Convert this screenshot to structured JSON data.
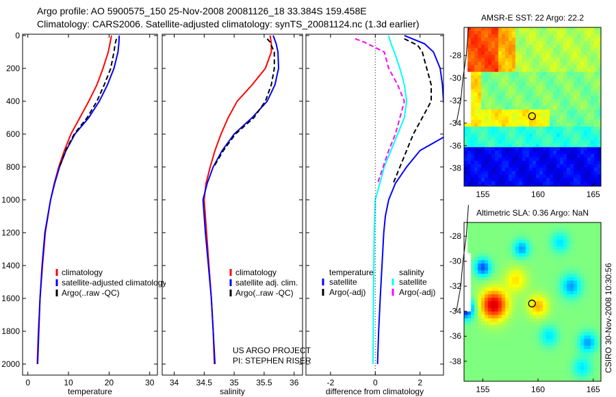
{
  "title": {
    "line1": "Argo profile: AO 5900575_150 25-Nov-2008 20081126_18 33.384S 159.458E",
    "line2": "Climatology: CARS2006. Satellite-adjusted climatology: synTS_20081124.nc (1.3d earlier)"
  },
  "side_text": "CSIRO 30-Nov-2008 10:30:56",
  "project": {
    "line1": "US ARGO PROJECT",
    "line2": "PI: STEPHEN RISER"
  },
  "colors": {
    "climatology": "#ff0000",
    "satellite": "#0000ff",
    "argo": "#000000",
    "sal_sat": "#00ffff",
    "sal_argo": "#ff00ff"
  },
  "chart_data": [
    {
      "type": "line",
      "id": "temperature",
      "xlabel": "temperature",
      "ylabel": "",
      "xlim": [
        -1.3,
        31.9
      ],
      "ylim": [
        2067,
        -8
      ],
      "xticks": [
        "0",
        "10",
        "20",
        "30"
      ],
      "xtick_values": [
        0,
        10,
        20,
        30
      ],
      "yticks": [
        "0",
        "200",
        "400",
        "600",
        "800",
        "1000",
        "1200",
        "1400",
        "1600",
        "1800",
        "2000"
      ],
      "ytick_values": [
        0,
        200,
        400,
        600,
        800,
        1000,
        1200,
        1400,
        1600,
        1800,
        2000
      ],
      "legend": [
        "climatology",
        "satellite-adjusted climatology",
        "Argo(..raw -QC)"
      ],
      "series": [
        {
          "name": "climatology",
          "color": "#ff0000",
          "dash": false,
          "depth": [
            0,
            50,
            100,
            200,
            300,
            400,
            500,
            600,
            700,
            800,
            900,
            1000,
            1200,
            1400,
            1600,
            1800,
            2000
          ],
          "values": [
            20.6,
            20.2,
            19.8,
            18.5,
            17,
            15,
            12.8,
            10.6,
            9,
            7.6,
            6.5,
            5.6,
            4.3,
            3.6,
            3.0,
            2.6,
            2.3
          ]
        },
        {
          "name": "satellite-adjusted climatology",
          "color": "#0000ff",
          "dash": false,
          "depth": [
            0,
            50,
            100,
            200,
            300,
            400,
            500,
            600,
            700,
            800,
            900,
            1000,
            1200,
            1400,
            1600,
            1800,
            2000
          ],
          "values": [
            22.5,
            22.4,
            22.2,
            21.2,
            19.6,
            17.6,
            15,
            11.6,
            9.4,
            7.8,
            6.6,
            5.6,
            4.2,
            3.5,
            3.0,
            2.7,
            2.4
          ]
        },
        {
          "name": "Argo(..raw -QC)",
          "color": "#000000",
          "dash": true,
          "depth": [
            20,
            50,
            100,
            200,
            300,
            400,
            500,
            600,
            700,
            800
          ],
          "values": [
            21.8,
            21.5,
            21.2,
            20.4,
            18.8,
            17,
            14.6,
            11.4,
            9.3,
            7.8
          ]
        }
      ]
    },
    {
      "type": "line",
      "id": "salinity",
      "xlabel": "salinity",
      "xlim": [
        33.8,
        36.14
      ],
      "ylim": [
        2067,
        -8
      ],
      "xticks": [
        "34",
        "34.5",
        "35",
        "35.5",
        "36"
      ],
      "xtick_values": [
        34,
        34.5,
        35,
        35.5,
        36
      ],
      "legend": [
        "climatology",
        "satellite adj. clim.",
        "Argo(..raw -QC)"
      ],
      "series": [
        {
          "name": "climatology",
          "color": "#ff0000",
          "dash": false,
          "depth": [
            0,
            50,
            100,
            200,
            300,
            400,
            500,
            600,
            700,
            800,
            900,
            1000,
            1200,
            1400,
            1600,
            1800,
            2000
          ],
          "values": [
            35.6,
            35.62,
            35.62,
            35.52,
            35.3,
            35.05,
            34.9,
            34.78,
            34.68,
            34.6,
            34.53,
            34.5,
            34.54,
            34.58,
            34.62,
            34.65,
            34.67
          ]
        },
        {
          "name": "satellite adj. clim.",
          "color": "#0000ff",
          "dash": false,
          "depth": [
            0,
            50,
            100,
            200,
            300,
            400,
            500,
            600,
            700,
            800,
            900,
            1000,
            1200,
            1400,
            1600,
            1800,
            2000
          ],
          "values": [
            35.65,
            35.7,
            35.73,
            35.74,
            35.68,
            35.55,
            35.3,
            35.0,
            34.8,
            34.65,
            34.55,
            34.48,
            34.52,
            34.57,
            34.62,
            34.65,
            34.68
          ]
        },
        {
          "name": "Argo(..raw -QC)",
          "color": "#000000",
          "dash": true,
          "depth": [
            20,
            40,
            60,
            100,
            200,
            300,
            400,
            500,
            600,
            700,
            800
          ],
          "values": [
            35.55,
            35.6,
            35.62,
            35.67,
            35.67,
            35.62,
            35.52,
            35.33,
            35.02,
            34.82,
            34.66
          ]
        }
      ]
    },
    {
      "type": "line",
      "id": "difference",
      "xlabel": "difference from climatology",
      "xlim": [
        -3.1,
        3.05
      ],
      "ylim": [
        2067,
        -8
      ],
      "xticks": [
        "-2",
        "0",
        "2"
      ],
      "xtick_values": [
        -2,
        0,
        2
      ],
      "legend_temperature": {
        "title": "temperature",
        "items": [
          "satellite",
          "Argo(-adj)"
        ]
      },
      "legend_salinity": {
        "title": "salinity",
        "items": [
          "satellite",
          "Argo(-adj)"
        ]
      },
      "series": [
        {
          "name": "temperature satellite",
          "color": "#0000ff",
          "dash": false,
          "depth": [
            0,
            50,
            100,
            200,
            300,
            400,
            450,
            500,
            600,
            700,
            800,
            900,
            1000,
            1100,
            1200,
            1400,
            1600,
            1800,
            2000
          ],
          "values": [
            1.3,
            2.2,
            2.6,
            2.9,
            3.0,
            3.05,
            3.1,
            3.4,
            3.3,
            2.0,
            1.4,
            0.9,
            0.6,
            0.45,
            0.38,
            0.3,
            0.22,
            0.15,
            0.1
          ]
        },
        {
          "name": "temperature Argo(-adj)",
          "color": "#000000",
          "dash": true,
          "depth": [
            20,
            60,
            100,
            150,
            200,
            300,
            400,
            500,
            600,
            700,
            800,
            900
          ],
          "values": [
            1.3,
            1.9,
            2.1,
            2.2,
            2.3,
            2.5,
            2.5,
            2.1,
            1.7,
            1.4,
            1.1,
            0.8
          ]
        },
        {
          "name": "salinity satellite",
          "color": "#00ffff",
          "dash": false,
          "depth": [
            0,
            50,
            100,
            200,
            300,
            400,
            500,
            600,
            700,
            800,
            900,
            1000,
            1200,
            1600,
            2000
          ],
          "values": [
            0.6,
            0.7,
            0.85,
            1.1,
            1.3,
            1.4,
            1.3,
            1.0,
            0.7,
            0.4,
            0.2,
            0.0,
            -0.05,
            -0.08,
            -0.1
          ]
        },
        {
          "name": "salinity Argo(-adj)",
          "color": "#ff00ff",
          "dash": true,
          "depth": [
            20,
            40,
            60,
            100,
            200,
            300,
            400,
            500,
            600,
            700,
            800,
            900
          ],
          "values": [
            -0.9,
            -0.5,
            -0.2,
            0.4,
            0.6,
            1.0,
            1.3,
            1.1,
            0.9,
            0.6,
            0.35,
            0.1
          ]
        },
        {
          "name": "zero",
          "color": "#000000",
          "dotted": true,
          "depth": [
            -8,
            2067
          ],
          "values": [
            0,
            0
          ]
        }
      ]
    },
    {
      "type": "heatmap",
      "id": "sst-map",
      "title": "AMSR-E SST: 22 Argo: 22.2",
      "xlim": [
        153.3,
        165.7
      ],
      "ylim": [
        -39.6,
        -25.5
      ],
      "xticks": [
        "155",
        "160",
        "165"
      ],
      "xtick_values": [
        155,
        160,
        165
      ],
      "yticks": [
        "-28",
        "-30",
        "-32",
        "-34",
        "-36",
        "-38"
      ],
      "ytick_values": [
        -28,
        -30,
        -32,
        -34,
        -36,
        -38
      ],
      "marker": {
        "lon": 159.458,
        "lat": -33.384
      }
    },
    {
      "type": "heatmap",
      "id": "sla-map",
      "title": "Altimetric SLA: 0.36 Argo: NaN",
      "xlim": [
        153.3,
        165.7
      ],
      "ylim": [
        -39.6,
        -26.9
      ],
      "xticks": [
        "155",
        "160",
        "165"
      ],
      "xtick_values": [
        155,
        160,
        165
      ],
      "yticks": [
        "-28",
        "-30",
        "-32",
        "-34",
        "-36",
        "-38"
      ],
      "ytick_values": [
        -28,
        -30,
        -32,
        -34,
        -36,
        -38
      ],
      "marker": {
        "lon": 159.458,
        "lat": -33.384
      }
    }
  ]
}
